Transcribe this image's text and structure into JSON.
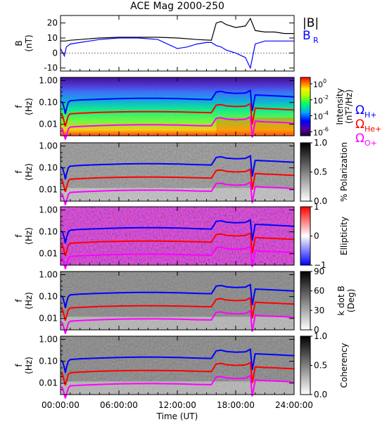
{
  "title": "ACE Mag 2000-250",
  "x_axis": {
    "label": "Time (UT)",
    "ticks": [
      "00:00:00",
      "06:00:00",
      "12:00:00",
      "18:00:00",
      "24:00:00"
    ],
    "range_hours": [
      0,
      24
    ]
  },
  "freq_ticks": [
    "1.00",
    "0.10",
    "0.01"
  ],
  "freq_ylabel": [
    "f",
    "(Hz)"
  ],
  "colors": {
    "total_field": "#000000",
    "radial_field": "#0000ff",
    "omega_h": "#0000ff",
    "omega_he": "#ff0000",
    "omega_o": "#ff00ff"
  },
  "chart_data": [
    {
      "type": "line",
      "panel": "magnetic-field",
      "ylabel": [
        "B",
        "(nT)"
      ],
      "ylim": [
        -12,
        25
      ],
      "yticks": [
        "20",
        "10",
        "0",
        "-10"
      ],
      "legend": {
        "total": "|B|",
        "radial": "B",
        "radial_sub": "R"
      },
      "series": [
        {
          "name": "|B|",
          "x": [
            0,
            0.5,
            1,
            2,
            4,
            6,
            8,
            10,
            12,
            14,
            15.5,
            16,
            16.5,
            17,
            18,
            19,
            19.5,
            20,
            21,
            22,
            23,
            24
          ],
          "y": [
            8,
            8,
            8.5,
            9,
            10,
            10.5,
            10.5,
            10.5,
            10,
            9,
            8.5,
            20,
            21,
            19,
            17,
            18,
            23,
            15,
            14,
            14,
            13,
            13
          ]
        },
        {
          "name": "B_R",
          "x": [
            0,
            0.4,
            0.6,
            1,
            2,
            3,
            4,
            6,
            8,
            10,
            12,
            13,
            14,
            15,
            15.5,
            16,
            16.5,
            17,
            18,
            19,
            19.5,
            20,
            21,
            22,
            23,
            24
          ],
          "y": [
            3,
            -2,
            4,
            6,
            7,
            8,
            9,
            10,
            10,
            9,
            3,
            4,
            6,
            7,
            7,
            5,
            4,
            2,
            0,
            -3,
            -10,
            6,
            8,
            8,
            8,
            8
          ]
        }
      ]
    },
    {
      "type": "heatmap",
      "panel": "intensity",
      "ylim": [
        0.003,
        1.4
      ],
      "yscale": "log",
      "colorbar": {
        "label": [
          "Intensity",
          "(nT",
          "2",
          "/Hz)"
        ],
        "tick_bases": [
          "10",
          "10",
          "10",
          "10"
        ],
        "tick_exps": [
          "0",
          "-2",
          "-4",
          "-6"
        ],
        "palette": "rainbow",
        "range_exp": [
          -6.5,
          0.8
        ]
      },
      "legend": [
        {
          "symbol": "Ω",
          "sub": "H+"
        },
        {
          "symbol": "Ω",
          "sub": "He+"
        },
        {
          "symbol": "Ω",
          "sub": "O+"
        }
      ]
    },
    {
      "type": "heatmap",
      "panel": "polarization",
      "ylim": [
        0.003,
        1.4
      ],
      "colorbar": {
        "label": "% Polarization",
        "ticks": [
          "1.0",
          "0.5",
          "0.0"
        ],
        "palette": "gray"
      }
    },
    {
      "type": "heatmap",
      "panel": "ellipticity",
      "ylim": [
        0.003,
        1.4
      ],
      "colorbar": {
        "label": "Ellipticity",
        "ticks": [
          "1",
          "0",
          "−1"
        ],
        "palette": "blue-white-red"
      }
    },
    {
      "type": "heatmap",
      "panel": "wave-normal-angle",
      "ylim": [
        0.003,
        1.4
      ],
      "colorbar": {
        "label": [
          "k dot B",
          "(Deg)"
        ],
        "ticks": [
          "90",
          "60",
          "30",
          "0"
        ],
        "palette": "gray"
      }
    },
    {
      "type": "heatmap",
      "panel": "coherency",
      "ylim": [
        0.003,
        1.4
      ],
      "colorbar": {
        "label": "Coherency",
        "ticks": [
          "1.0",
          "0.5",
          "0.0"
        ],
        "palette": "gray"
      }
    }
  ],
  "gyrofrequency_lines": {
    "x": [
      0,
      0.2,
      0.4,
      0.5,
      0.6,
      0.8,
      1,
      2,
      4,
      6,
      8,
      10,
      12,
      14,
      15.5,
      16,
      16.5,
      17,
      18,
      19,
      19.5,
      19.7,
      20,
      21,
      22,
      23,
      24
    ],
    "H+": [
      0.11,
      0.1,
      0.05,
      0.03,
      0.05,
      0.1,
      0.12,
      0.13,
      0.14,
      0.15,
      0.155,
      0.155,
      0.15,
      0.14,
      0.135,
      0.3,
      0.32,
      0.28,
      0.26,
      0.27,
      0.35,
      0.04,
      0.22,
      0.21,
      0.2,
      0.19,
      0.18
    ],
    "He+": [
      0.027,
      0.025,
      0.012,
      0.008,
      0.012,
      0.025,
      0.03,
      0.032,
      0.035,
      0.037,
      0.038,
      0.038,
      0.037,
      0.035,
      0.034,
      0.075,
      0.08,
      0.07,
      0.065,
      0.068,
      0.087,
      0.01,
      0.055,
      0.052,
      0.05,
      0.047,
      0.045
    ],
    "O+": [
      0.007,
      0.006,
      0.003,
      0.002,
      0.003,
      0.006,
      0.0075,
      0.008,
      0.0087,
      0.0093,
      0.0095,
      0.0095,
      0.0093,
      0.0087,
      0.0085,
      0.019,
      0.02,
      0.0175,
      0.016,
      0.017,
      0.022,
      0.0025,
      0.014,
      0.013,
      0.0125,
      0.012,
      0.011
    ]
  }
}
